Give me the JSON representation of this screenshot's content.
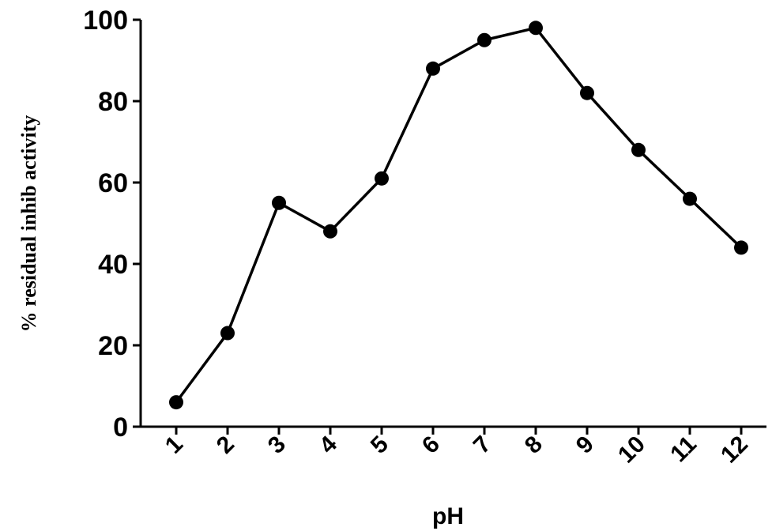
{
  "chart_data": {
    "type": "line",
    "xlabel": "pH",
    "ylabel": "% residual inhib activity",
    "x": [
      1,
      2,
      3,
      4,
      5,
      6,
      7,
      8,
      9,
      10,
      11,
      12
    ],
    "x_tick_labels": [
      "1",
      "2",
      "3",
      "4",
      "5",
      "6",
      "7",
      "8",
      "9",
      "10",
      "11",
      "12"
    ],
    "y_ticks": [
      0,
      20,
      40,
      60,
      80,
      100
    ],
    "ylim": [
      0,
      100
    ],
    "grid": false,
    "legend": "none",
    "series": [
      {
        "values": [
          6,
          23,
          55,
          48,
          61,
          88,
          95,
          98,
          82,
          68,
          56,
          44
        ],
        "color": "#000000",
        "marker": "filled-circle"
      }
    ]
  }
}
